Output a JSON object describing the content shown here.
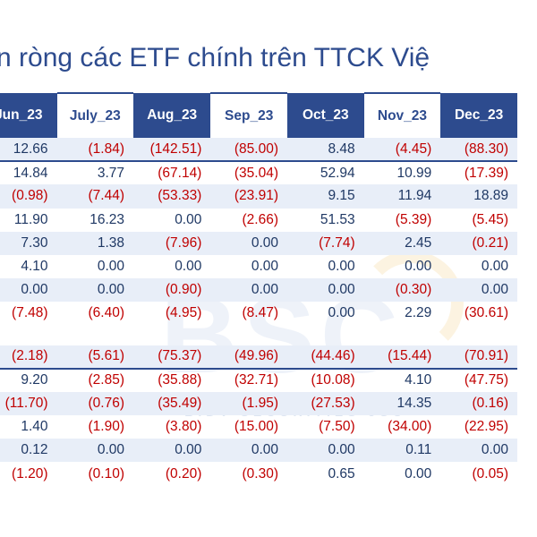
{
  "title": "n ròng các ETF chính trên TTCK Việ",
  "watermark": {
    "text": "BSC",
    "subtext": "BIDV SECURITIES JSC"
  },
  "colors": {
    "header_dark": "#2d4b8e",
    "header_text_light": "#2d4b8e",
    "band": "#e8eef8",
    "positive": "#1f3864",
    "negative": "#c00000"
  },
  "chart_data": {
    "type": "table",
    "columns": [
      "Jun_23",
      "July_23",
      "Aug_23",
      "Sep_23",
      "Oct_23",
      "Nov_23",
      "Dec_23"
    ],
    "groups": [
      {
        "rows": [
          [
            "12.66",
            "(1.84)",
            "(142.51)",
            "(85.00)",
            "8.48",
            "(4.45)",
            "(88.30)"
          ],
          [
            "14.84",
            "3.77",
            "(67.14)",
            "(35.04)",
            "52.94",
            "10.99",
            "(17.39)"
          ],
          [
            "(0.98)",
            "(7.44)",
            "(53.33)",
            "(23.91)",
            "9.15",
            "11.94",
            "18.89"
          ],
          [
            "11.90",
            "16.23",
            "0.00",
            "(2.66)",
            "51.53",
            "(5.39)",
            "(5.45)"
          ],
          [
            "7.30",
            "1.38",
            "(7.96)",
            "0.00",
            "(7.74)",
            "2.45",
            "(0.21)"
          ],
          [
            "4.10",
            "0.00",
            "0.00",
            "0.00",
            "0.00",
            "0.00",
            "0.00"
          ],
          [
            "0.00",
            "0.00",
            "(0.90)",
            "0.00",
            "0.00",
            "(0.30)",
            "0.00"
          ],
          [
            "(7.48)",
            "(6.40)",
            "(4.95)",
            "(8.47)",
            "0.00",
            "2.29",
            "(30.61)"
          ]
        ]
      },
      {
        "rows": [
          [
            "(2.18)",
            "(5.61)",
            "(75.37)",
            "(49.96)",
            "(44.46)",
            "(15.44)",
            "(70.91)"
          ],
          [
            "9.20",
            "(2.85)",
            "(35.88)",
            "(32.71)",
            "(10.08)",
            "4.10",
            "(47.75)"
          ],
          [
            "(11.70)",
            "(0.76)",
            "(35.49)",
            "(1.95)",
            "(27.53)",
            "14.35",
            "(0.16)"
          ],
          [
            "1.40",
            "(1.90)",
            "(3.80)",
            "(15.00)",
            "(7.50)",
            "(34.00)",
            "(22.95)"
          ],
          [
            "0.12",
            "0.00",
            "0.00",
            "0.00",
            "0.00",
            "0.11",
            "0.00"
          ],
          [
            "(1.20)",
            "(0.10)",
            "(0.20)",
            "(0.30)",
            "0.65",
            "0.00",
            "(0.05)"
          ]
        ]
      }
    ]
  }
}
